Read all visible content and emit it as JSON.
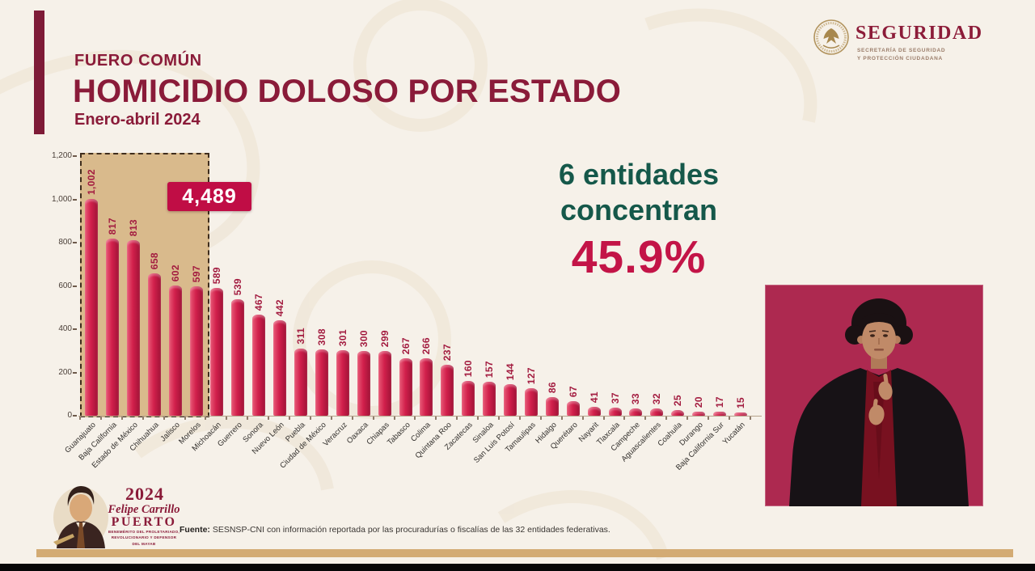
{
  "header": {
    "kicker": "FUERO COMÚN",
    "title": "HOMICIDIO DOLOSO POR ESTADO",
    "subtitle": "Enero-abril 2024"
  },
  "logo_seguridad": {
    "wordmark": "SEGURIDAD",
    "tagline_line1": "SECRETARÍA DE SEGURIDAD",
    "tagline_line2": "Y PROTECCIÓN CIUDADANA"
  },
  "callout": {
    "line1": "6 entidades",
    "line2": "concentran",
    "percent": "45.9%"
  },
  "chart_data": {
    "type": "bar",
    "title": "FUERO COMÚN — HOMICIDIO DOLOSO POR ESTADO, Enero-abril 2024",
    "xlabel": "",
    "ylabel": "",
    "ylim": [
      0,
      1200
    ],
    "yticks": [
      "0",
      "200",
      "400",
      "600",
      "800",
      "1,000",
      "1,200"
    ],
    "grid": false,
    "legend": false,
    "bar_color": "#d2204c",
    "categories": [
      "Guanajuato",
      "Baja California",
      "Estado de México",
      "Chihuahua",
      "Jalisco",
      "Morelos",
      "Michoacán",
      "Guerrero",
      "Sonora",
      "Nuevo León",
      "Puebla",
      "Ciudad de México",
      "Veracruz",
      "Oaxaca",
      "Chiapas",
      "Tabasco",
      "Colima",
      "Quintana Roo",
      "Zacatecas",
      "Sinaloa",
      "San Luis Potosí",
      "Tamaulipas",
      "Hidalgo",
      "Querétaro",
      "Nayarit",
      "Tlaxcala",
      "Campeche",
      "Aguascalientes",
      "Coahuila",
      "Durango",
      "Baja California Sur",
      "Yucatán"
    ],
    "values": [
      1002,
      817,
      813,
      658,
      602,
      597,
      589,
      539,
      467,
      442,
      311,
      308,
      301,
      300,
      299,
      267,
      266,
      237,
      160,
      157,
      144,
      127,
      86,
      67,
      41,
      37,
      33,
      32,
      25,
      20,
      17,
      15
    ],
    "value_labels": [
      "1,002",
      "817",
      "813",
      "658",
      "602",
      "597",
      "589",
      "539",
      "467",
      "442",
      "311",
      "308",
      "301",
      "300",
      "299",
      "267",
      "266",
      "237",
      "160",
      "157",
      "144",
      "127",
      "86",
      "67",
      "41",
      "37",
      "33",
      "32",
      "25",
      "20",
      "17",
      "15"
    ],
    "highlighted_first_n": 6,
    "highlight_total": "4,489"
  },
  "footer": {
    "source_label": "Fuente:",
    "source_text": "SESNSP-CNI con información reportada por las procuradurías o fiscalías de las 32 entidades federativas."
  },
  "logo_year": {
    "year": "2024",
    "name_script": "Felipe Carrillo",
    "name_caps": "PUERTO",
    "caption_line1": "BENEMÉRITO DEL PROLETARIADO,",
    "caption_line2": "REVOLUCIONARIO Y DEFENSOR",
    "caption_line3": "DEL MAYAB"
  },
  "colors": {
    "maroon": "#8a1b39",
    "bar_crimson": "#d2204c",
    "badge_crimson": "#c00d45",
    "highlight_tan": "#d9ba8c",
    "callout_green": "#15584a",
    "percent_crimson": "#c31447",
    "gold_strip": "#d3ab74",
    "interpreter_bg": "#ad2950"
  }
}
